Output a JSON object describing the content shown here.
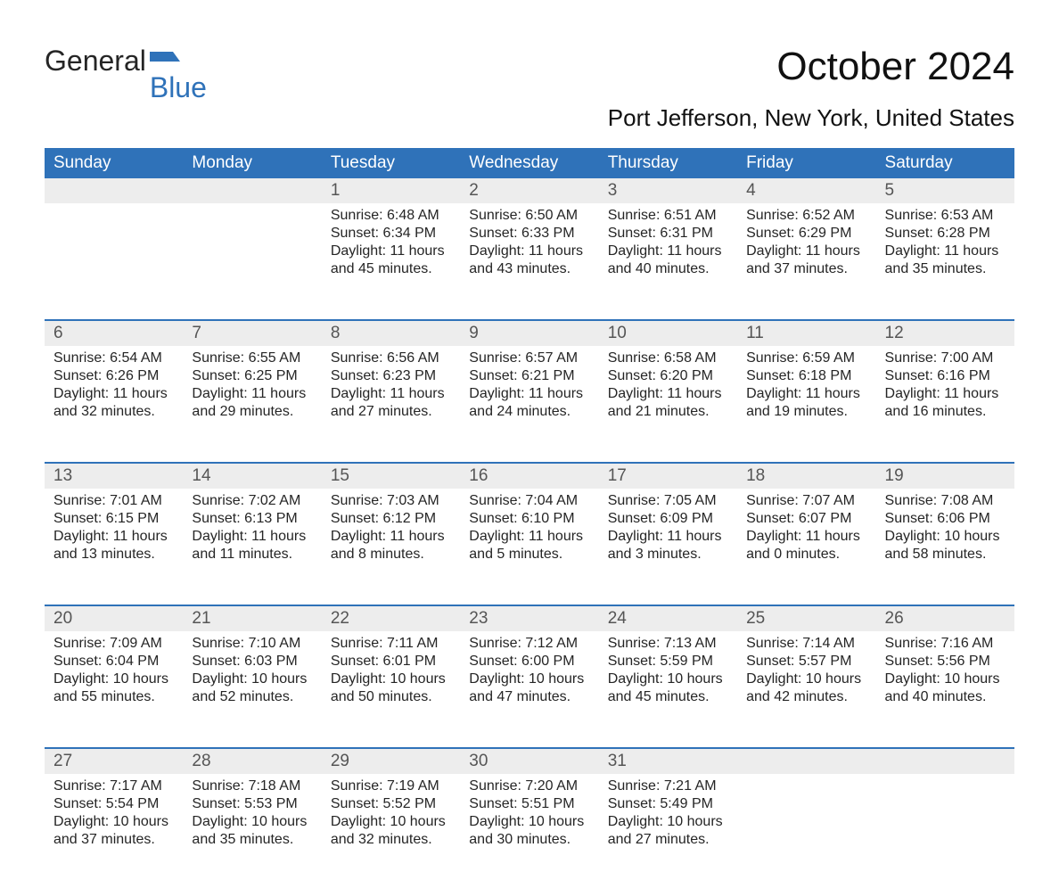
{
  "logo": {
    "text1": "General",
    "text2": "Blue"
  },
  "title": "October 2024",
  "subtitle": "Port Jefferson, New York, United States",
  "colors": {
    "header_bg": "#2F72B9",
    "daynum_bg": "#ededed",
    "text": "#252525",
    "white": "#ffffff"
  },
  "fonts": {
    "title_size": 44,
    "subtitle_size": 26,
    "dayhead_size": 19,
    "daynum_size": 19,
    "body_size": 16
  },
  "day_labels": [
    "Sunday",
    "Monday",
    "Tuesday",
    "Wednesday",
    "Thursday",
    "Friday",
    "Saturday"
  ],
  "weeks": [
    [
      null,
      null,
      {
        "n": "1",
        "sunrise": "6:48 AM",
        "sunset": "6:34 PM",
        "daylight": "11 hours and 45 minutes."
      },
      {
        "n": "2",
        "sunrise": "6:50 AM",
        "sunset": "6:33 PM",
        "daylight": "11 hours and 43 minutes."
      },
      {
        "n": "3",
        "sunrise": "6:51 AM",
        "sunset": "6:31 PM",
        "daylight": "11 hours and 40 minutes."
      },
      {
        "n": "4",
        "sunrise": "6:52 AM",
        "sunset": "6:29 PM",
        "daylight": "11 hours and 37 minutes."
      },
      {
        "n": "5",
        "sunrise": "6:53 AM",
        "sunset": "6:28 PM",
        "daylight": "11 hours and 35 minutes."
      }
    ],
    [
      {
        "n": "6",
        "sunrise": "6:54 AM",
        "sunset": "6:26 PM",
        "daylight": "11 hours and 32 minutes."
      },
      {
        "n": "7",
        "sunrise": "6:55 AM",
        "sunset": "6:25 PM",
        "daylight": "11 hours and 29 minutes."
      },
      {
        "n": "8",
        "sunrise": "6:56 AM",
        "sunset": "6:23 PM",
        "daylight": "11 hours and 27 minutes."
      },
      {
        "n": "9",
        "sunrise": "6:57 AM",
        "sunset": "6:21 PM",
        "daylight": "11 hours and 24 minutes."
      },
      {
        "n": "10",
        "sunrise": "6:58 AM",
        "sunset": "6:20 PM",
        "daylight": "11 hours and 21 minutes."
      },
      {
        "n": "11",
        "sunrise": "6:59 AM",
        "sunset": "6:18 PM",
        "daylight": "11 hours and 19 minutes."
      },
      {
        "n": "12",
        "sunrise": "7:00 AM",
        "sunset": "6:16 PM",
        "daylight": "11 hours and 16 minutes."
      }
    ],
    [
      {
        "n": "13",
        "sunrise": "7:01 AM",
        "sunset": "6:15 PM",
        "daylight": "11 hours and 13 minutes."
      },
      {
        "n": "14",
        "sunrise": "7:02 AM",
        "sunset": "6:13 PM",
        "daylight": "11 hours and 11 minutes."
      },
      {
        "n": "15",
        "sunrise": "7:03 AM",
        "sunset": "6:12 PM",
        "daylight": "11 hours and 8 minutes."
      },
      {
        "n": "16",
        "sunrise": "7:04 AM",
        "sunset": "6:10 PM",
        "daylight": "11 hours and 5 minutes."
      },
      {
        "n": "17",
        "sunrise": "7:05 AM",
        "sunset": "6:09 PM",
        "daylight": "11 hours and 3 minutes."
      },
      {
        "n": "18",
        "sunrise": "7:07 AM",
        "sunset": "6:07 PM",
        "daylight": "11 hours and 0 minutes."
      },
      {
        "n": "19",
        "sunrise": "7:08 AM",
        "sunset": "6:06 PM",
        "daylight": "10 hours and 58 minutes."
      }
    ],
    [
      {
        "n": "20",
        "sunrise": "7:09 AM",
        "sunset": "6:04 PM",
        "daylight": "10 hours and 55 minutes."
      },
      {
        "n": "21",
        "sunrise": "7:10 AM",
        "sunset": "6:03 PM",
        "daylight": "10 hours and 52 minutes."
      },
      {
        "n": "22",
        "sunrise": "7:11 AM",
        "sunset": "6:01 PM",
        "daylight": "10 hours and 50 minutes."
      },
      {
        "n": "23",
        "sunrise": "7:12 AM",
        "sunset": "6:00 PM",
        "daylight": "10 hours and 47 minutes."
      },
      {
        "n": "24",
        "sunrise": "7:13 AM",
        "sunset": "5:59 PM",
        "daylight": "10 hours and 45 minutes."
      },
      {
        "n": "25",
        "sunrise": "7:14 AM",
        "sunset": "5:57 PM",
        "daylight": "10 hours and 42 minutes."
      },
      {
        "n": "26",
        "sunrise": "7:16 AM",
        "sunset": "5:56 PM",
        "daylight": "10 hours and 40 minutes."
      }
    ],
    [
      {
        "n": "27",
        "sunrise": "7:17 AM",
        "sunset": "5:54 PM",
        "daylight": "10 hours and 37 minutes."
      },
      {
        "n": "28",
        "sunrise": "7:18 AM",
        "sunset": "5:53 PM",
        "daylight": "10 hours and 35 minutes."
      },
      {
        "n": "29",
        "sunrise": "7:19 AM",
        "sunset": "5:52 PM",
        "daylight": "10 hours and 32 minutes."
      },
      {
        "n": "30",
        "sunrise": "7:20 AM",
        "sunset": "5:51 PM",
        "daylight": "10 hours and 30 minutes."
      },
      {
        "n": "31",
        "sunrise": "7:21 AM",
        "sunset": "5:49 PM",
        "daylight": "10 hours and 27 minutes."
      },
      null,
      null
    ]
  ],
  "labels": {
    "sunrise_prefix": "Sunrise: ",
    "sunset_prefix": "Sunset: ",
    "daylight_prefix": "Daylight: "
  }
}
